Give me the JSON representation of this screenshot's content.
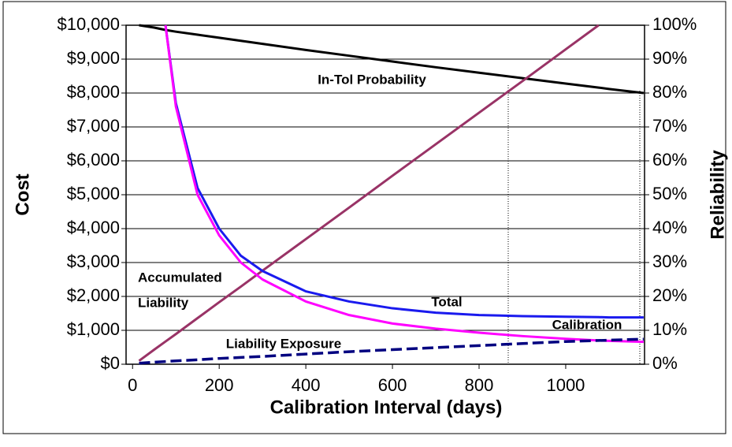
{
  "chart_data": {
    "type": "line",
    "x_label": "Calibration Interval (days)",
    "y_label": "Cost",
    "y2_label": "Reliability",
    "x": [
      15,
      50,
      76,
      100,
      150,
      200,
      250,
      300,
      400,
      500,
      600,
      700,
      800,
      900,
      1000,
      1076,
      1100,
      1180
    ],
    "xlim": [
      -15,
      1182
    ],
    "xticks": [
      0,
      200,
      400,
      600,
      800,
      1000
    ],
    "ylim": [
      0,
      10000
    ],
    "yticks": [
      {
        "value": 0,
        "label": "$0"
      },
      {
        "value": 1000,
        "label": "$1,000"
      },
      {
        "value": 2000,
        "label": "$2,000"
      },
      {
        "value": 3000,
        "label": "$3,000"
      },
      {
        "value": 4000,
        "label": "$4,000"
      },
      {
        "value": 5000,
        "label": "$5,000"
      },
      {
        "value": 6000,
        "label": "$6,000"
      },
      {
        "value": 7000,
        "label": "$7,000"
      },
      {
        "value": 8000,
        "label": "$8,000"
      },
      {
        "value": 9000,
        "label": "$9,000"
      },
      {
        "value": 10000,
        "label": "$10,000"
      }
    ],
    "y2lim": [
      0,
      100
    ],
    "y2ticks": [
      {
        "value": 0,
        "label": "0%"
      },
      {
        "value": 10,
        "label": "10%"
      },
      {
        "value": 20,
        "label": "20%"
      },
      {
        "value": 30,
        "label": "30%"
      },
      {
        "value": 40,
        "label": "40%"
      },
      {
        "value": 50,
        "label": "50%"
      },
      {
        "value": 60,
        "label": "60%"
      },
      {
        "value": 70,
        "label": "70%"
      },
      {
        "value": 80,
        "label": "80%"
      },
      {
        "value": 90,
        "label": "90%"
      },
      {
        "value": 100,
        "label": "100%"
      }
    ],
    "grid": true,
    "series": [
      {
        "name": "In-Tol Probability",
        "color": "#000000",
        "axis": "y2",
        "values": [
          100,
          99.3,
          98.6,
          98.1,
          97.2,
          96.3,
          95.4,
          94.5,
          92.7,
          91,
          89.3,
          87.6,
          86,
          84.4,
          82.8,
          81.6,
          81.2,
          80
        ]
      },
      {
        "color": "#993366",
        "values": [
          100,
          430,
          670,
          890,
          1360,
          1830,
          2290,
          2760,
          3690,
          4620,
          5560,
          6490,
          7420,
          8350,
          9290,
          10000,
          null,
          null
        ]
      },
      {
        "name": "Total",
        "color": "#1a1aee",
        "values": [
          null,
          null,
          10000,
          7700,
          5200,
          4000,
          3200,
          2750,
          2150,
          1850,
          1650,
          1520,
          1450,
          1420,
          1400,
          1390,
          1380,
          1380
        ]
      },
      {
        "name": "Calibration",
        "color": "#ff00ff",
        "values": [
          null,
          null,
          10000,
          7600,
          5000,
          3800,
          3000,
          2500,
          1850,
          1450,
          1200,
          1050,
          930,
          830,
          750,
          700,
          690,
          660
        ]
      },
      {
        "name": "Liability Exposure",
        "color": "#000080",
        "dashed": true,
        "values": [
          30,
          60,
          80,
          100,
          130,
          170,
          200,
          230,
          300,
          370,
          430,
          490,
          550,
          610,
          670,
          700,
          710,
          740
        ]
      }
    ],
    "annotations": [
      "Accumulated",
      "Liability"
    ]
  }
}
